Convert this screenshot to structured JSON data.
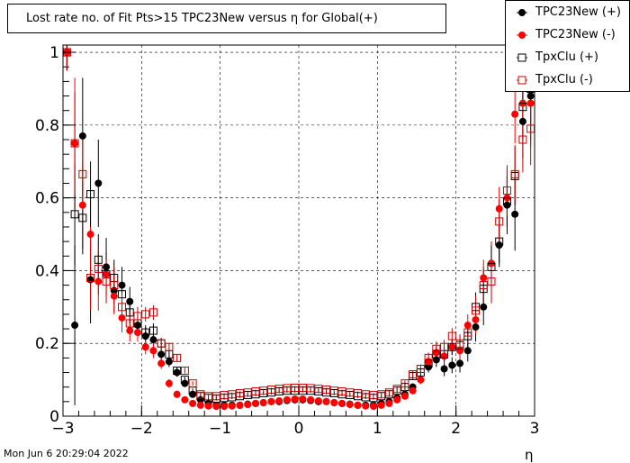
{
  "title": "Lost rate no. of Fit Pts>15 TPC23New versus η for Global(+)",
  "timestamp": "Mon Jun  6 20:29:04 2022",
  "chart_data": {
    "type": "scatter",
    "title": "Lost rate no. of Fit Pts>15 TPC23New versus η for Global(+)",
    "xlabel": "η",
    "ylabel": "",
    "xlim": [
      -3,
      3
    ],
    "ylim": [
      0,
      1.02
    ],
    "xticks": [
      "−3",
      "−2",
      "−1",
      "0",
      "1",
      "2",
      "3"
    ],
    "xtick_values": [
      -3,
      -2,
      -1,
      0,
      1,
      2,
      3
    ],
    "yticks": [
      "0",
      "0.2",
      "0.4",
      "0.6",
      "0.8",
      "1"
    ],
    "ytick_values": [
      0,
      0.2,
      0.4,
      0.6,
      0.8,
      1
    ],
    "grid": true,
    "legend_position": "top-right",
    "x": [
      -2.95,
      -2.85,
      -2.75,
      -2.65,
      -2.55,
      -2.45,
      -2.35,
      -2.25,
      -2.15,
      -2.05,
      -1.95,
      -1.85,
      -1.75,
      -1.65,
      -1.55,
      -1.45,
      -1.35,
      -1.25,
      -1.15,
      -1.05,
      -0.95,
      -0.85,
      -0.75,
      -0.65,
      -0.55,
      -0.45,
      -0.35,
      -0.25,
      -0.15,
      -0.05,
      0.05,
      0.15,
      0.25,
      0.35,
      0.45,
      0.55,
      0.65,
      0.75,
      0.85,
      0.95,
      1.05,
      1.15,
      1.25,
      1.35,
      1.45,
      1.55,
      1.65,
      1.75,
      1.85,
      1.95,
      2.05,
      2.15,
      2.25,
      2.35,
      2.45,
      2.55,
      2.65,
      2.75,
      2.85,
      2.95
    ],
    "series": [
      {
        "name": "TPC23New (+)",
        "color": "#000000",
        "marker": "filled-circle",
        "values": [
          1.0,
          0.25,
          0.77,
          0.375,
          0.64,
          0.41,
          0.345,
          0.36,
          0.315,
          0.25,
          0.22,
          0.21,
          0.17,
          0.15,
          0.12,
          0.09,
          0.06,
          0.045,
          0.035,
          0.03,
          0.03,
          0.03,
          0.03,
          0.033,
          0.035,
          0.037,
          0.04,
          0.04,
          0.043,
          0.045,
          0.045,
          0.043,
          0.04,
          0.04,
          0.037,
          0.035,
          0.033,
          0.03,
          0.03,
          0.03,
          0.035,
          0.04,
          0.05,
          0.06,
          0.08,
          0.1,
          0.135,
          0.155,
          0.13,
          0.14,
          0.145,
          0.18,
          0.245,
          0.3,
          0.42,
          0.47,
          0.58,
          0.555,
          0.81,
          0.88
        ],
        "errors": [
          0.05,
          0.22,
          0.16,
          0.12,
          0.12,
          0.08,
          0.06,
          0.05,
          0.04,
          0.03,
          0.025,
          0.02,
          0.02,
          0.015,
          0.012,
          0.01,
          0.008,
          0.006,
          0.005,
          0.005,
          0.005,
          0.005,
          0.005,
          0.005,
          0.005,
          0.005,
          0.005,
          0.005,
          0.005,
          0.005,
          0.005,
          0.005,
          0.005,
          0.005,
          0.005,
          0.005,
          0.005,
          0.005,
          0.005,
          0.005,
          0.005,
          0.006,
          0.007,
          0.008,
          0.01,
          0.012,
          0.015,
          0.02,
          0.02,
          0.022,
          0.025,
          0.03,
          0.04,
          0.05,
          0.06,
          0.06,
          0.08,
          0.1,
          0.1,
          0.12
        ]
      },
      {
        "name": "TPC23New (-)",
        "color": "#ff0000",
        "marker": "filled-circle",
        "values": [
          1.0,
          0.75,
          0.58,
          0.5,
          0.37,
          0.39,
          0.33,
          0.27,
          0.235,
          0.23,
          0.19,
          0.18,
          0.145,
          0.09,
          0.06,
          0.045,
          0.035,
          0.03,
          0.028,
          0.027,
          0.027,
          0.028,
          0.03,
          0.032,
          0.035,
          0.037,
          0.04,
          0.042,
          0.045,
          0.047,
          0.047,
          0.045,
          0.042,
          0.04,
          0.037,
          0.035,
          0.032,
          0.03,
          0.028,
          0.027,
          0.03,
          0.035,
          0.045,
          0.055,
          0.07,
          0.1,
          0.15,
          0.175,
          0.165,
          0.19,
          0.18,
          0.25,
          0.265,
          0.38,
          0.42,
          0.57,
          0.6,
          0.83,
          0.86,
          0.86
        ],
        "errors": [
          0.05,
          0.18,
          0.12,
          0.1,
          0.08,
          0.06,
          0.05,
          0.04,
          0.03,
          0.025,
          0.02,
          0.02,
          0.015,
          0.012,
          0.01,
          0.008,
          0.006,
          0.005,
          0.005,
          0.005,
          0.005,
          0.005,
          0.005,
          0.005,
          0.005,
          0.005,
          0.005,
          0.005,
          0.005,
          0.005,
          0.005,
          0.005,
          0.005,
          0.005,
          0.005,
          0.005,
          0.005,
          0.005,
          0.005,
          0.005,
          0.005,
          0.006,
          0.007,
          0.008,
          0.01,
          0.012,
          0.015,
          0.02,
          0.02,
          0.022,
          0.025,
          0.03,
          0.04,
          0.05,
          0.06,
          0.06,
          0.08,
          0.08,
          0.1,
          0.12
        ]
      },
      {
        "name": "TpxClu (+)",
        "color": "#000000",
        "marker": "open-square",
        "values": [
          1.0,
          0.555,
          0.545,
          0.61,
          0.43,
          0.39,
          0.38,
          0.335,
          0.285,
          0.255,
          0.23,
          0.235,
          0.2,
          0.17,
          0.125,
          0.1,
          0.07,
          0.055,
          0.05,
          0.048,
          0.05,
          0.052,
          0.055,
          0.058,
          0.06,
          0.063,
          0.065,
          0.068,
          0.07,
          0.07,
          0.07,
          0.07,
          0.068,
          0.065,
          0.063,
          0.06,
          0.058,
          0.055,
          0.052,
          0.05,
          0.055,
          0.06,
          0.07,
          0.08,
          0.11,
          0.12,
          0.145,
          0.17,
          0.17,
          0.19,
          0.195,
          0.22,
          0.3,
          0.35,
          0.41,
          0.48,
          0.59,
          0.66,
          0.85,
          0.9
        ],
        "errors": [
          0.05,
          0.14,
          0.1,
          0.09,
          0.07,
          0.06,
          0.05,
          0.04,
          0.03,
          0.025,
          0.02,
          0.02,
          0.015,
          0.012,
          0.01,
          0.008,
          0.006,
          0.005,
          0.005,
          0.005,
          0.005,
          0.005,
          0.005,
          0.005,
          0.005,
          0.005,
          0.005,
          0.005,
          0.005,
          0.005,
          0.005,
          0.005,
          0.005,
          0.005,
          0.005,
          0.005,
          0.005,
          0.005,
          0.005,
          0.005,
          0.005,
          0.006,
          0.007,
          0.008,
          0.01,
          0.012,
          0.015,
          0.02,
          0.02,
          0.022,
          0.025,
          0.03,
          0.04,
          0.05,
          0.06,
          0.06,
          0.07,
          0.08,
          0.09,
          0.1
        ]
      },
      {
        "name": "TpxClu (-)",
        "color": "#cc0000",
        "marker": "open-square",
        "values": [
          1.0,
          0.75,
          0.665,
          0.38,
          0.405,
          0.37,
          0.36,
          0.3,
          0.255,
          0.275,
          0.28,
          0.285,
          0.2,
          0.19,
          0.16,
          0.125,
          0.09,
          0.06,
          0.055,
          0.055,
          0.058,
          0.06,
          0.063,
          0.065,
          0.068,
          0.07,
          0.073,
          0.075,
          0.077,
          0.078,
          0.078,
          0.077,
          0.075,
          0.073,
          0.07,
          0.068,
          0.065,
          0.063,
          0.06,
          0.058,
          0.06,
          0.065,
          0.075,
          0.09,
          0.115,
          0.13,
          0.16,
          0.185,
          0.19,
          0.22,
          0.2,
          0.23,
          0.29,
          0.36,
          0.37,
          0.535,
          0.62,
          0.665,
          0.76,
          0.79
        ],
        "errors": [
          0.05,
          0.14,
          0.1,
          0.09,
          0.07,
          0.06,
          0.05,
          0.04,
          0.03,
          0.025,
          0.02,
          0.02,
          0.015,
          0.012,
          0.01,
          0.008,
          0.006,
          0.005,
          0.005,
          0.005,
          0.005,
          0.005,
          0.005,
          0.005,
          0.005,
          0.005,
          0.005,
          0.005,
          0.005,
          0.005,
          0.005,
          0.005,
          0.005,
          0.005,
          0.005,
          0.005,
          0.005,
          0.005,
          0.005,
          0.005,
          0.005,
          0.006,
          0.007,
          0.008,
          0.01,
          0.012,
          0.015,
          0.02,
          0.02,
          0.022,
          0.025,
          0.03,
          0.04,
          0.05,
          0.06,
          0.06,
          0.07,
          0.08,
          0.09,
          0.1
        ]
      }
    ]
  }
}
